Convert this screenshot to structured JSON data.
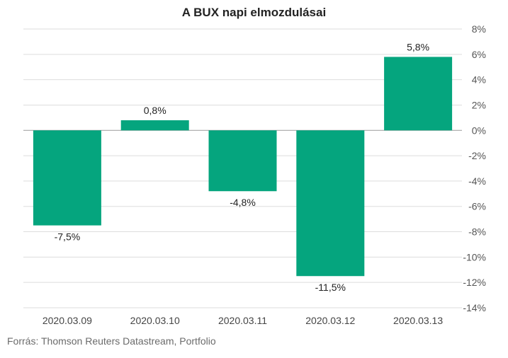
{
  "chart_data": {
    "type": "bar",
    "title": "A BUX napi elmozdulásai",
    "categories": [
      "2020.03.09",
      "2020.03.10",
      "2020.03.11",
      "2020.03.12",
      "2020.03.13"
    ],
    "values": [
      -7.5,
      0.8,
      -4.8,
      -11.5,
      5.8
    ],
    "data_labels": [
      "-7,5%",
      "0,8%",
      "-4,8%",
      "-11,5%",
      "5,8%"
    ],
    "y_ticks": [
      {
        "value": 8,
        "label": "8%"
      },
      {
        "value": 6,
        "label": "6%"
      },
      {
        "value": 4,
        "label": "4%"
      },
      {
        "value": 2,
        "label": "2%"
      },
      {
        "value": 0,
        "label": "0%"
      },
      {
        "value": -2,
        "label": "-2%"
      },
      {
        "value": -4,
        "label": "-4%"
      },
      {
        "value": -6,
        "label": "-6%"
      },
      {
        "value": -8,
        "label": "-8%"
      },
      {
        "value": -10,
        "label": "-10%"
      },
      {
        "value": -12,
        "label": "-12%"
      },
      {
        "value": -14,
        "label": "-14%"
      }
    ],
    "ylim": [
      -14,
      8
    ],
    "y_axis_position": "right",
    "grid": true,
    "bar_color": "#05a57e",
    "xlabel": "",
    "ylabel": ""
  },
  "source": "Forrás: Thomson Reuters Datastream, Portfolio"
}
